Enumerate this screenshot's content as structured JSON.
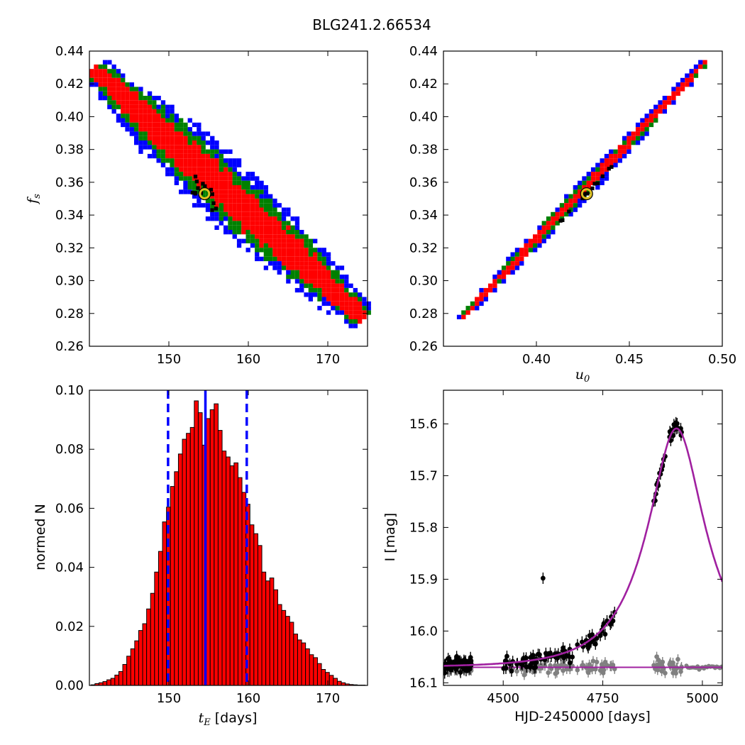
{
  "figure": {
    "title": "BLG241.2.66534"
  },
  "chart_data": [
    {
      "type": "heatmap",
      "id": "fs_vs_tE",
      "xlabel": "",
      "ylabel": "f_s",
      "xlim": [
        140,
        175
      ],
      "ylim": [
        0.26,
        0.44
      ],
      "xticks": [
        "150",
        "160",
        "170"
      ],
      "yticks": [
        "0.26",
        "0.28",
        "0.30",
        "0.32",
        "0.34",
        "0.36",
        "0.38",
        "0.40",
        "0.42",
        "0.44"
      ],
      "levels": [
        "blue",
        "green",
        "red",
        "black"
      ],
      "colors": {
        "blue": "#0000ff",
        "green": "#008000",
        "red": "#ff0000",
        "black": "#000000"
      },
      "correlation": {
        "x_start": 141,
        "y_start": 0.427,
        "x_end": 174,
        "y_end": 0.279
      },
      "best_fit": {
        "x": 154.5,
        "y": 0.353
      }
    },
    {
      "type": "heatmap",
      "id": "fs_vs_u0",
      "xlabel": "u_0",
      "ylabel": "",
      "xlim": [
        0.35,
        0.5
      ],
      "ylim": [
        0.26,
        0.44
      ],
      "xticks": [
        "0.40",
        "0.45",
        "0.50"
      ],
      "yticks": [
        "0.26",
        "0.28",
        "0.30",
        "0.32",
        "0.34",
        "0.36",
        "0.38",
        "0.40",
        "0.42",
        "0.44"
      ],
      "levels": [
        "blue",
        "green",
        "red",
        "black"
      ],
      "colors": {
        "blue": "#0000ff",
        "green": "#008000",
        "red": "#ff0000",
        "black": "#000000"
      },
      "correlation": {
        "x_start": 0.361,
        "y_start": 0.279,
        "x_end": 0.49,
        "y_end": 0.432
      },
      "best_fit": {
        "x": 0.427,
        "y": 0.353
      }
    },
    {
      "type": "bar",
      "id": "tE_histogram",
      "xlabel": "t_E [days]",
      "ylabel": "normed N",
      "xlim": [
        140,
        175
      ],
      "ylim": [
        0,
        0.1
      ],
      "xticks": [
        "150",
        "160",
        "170"
      ],
      "yticks": [
        "0.00",
        "0.02",
        "0.04",
        "0.06",
        "0.08",
        "0.10"
      ],
      "bar_color": "#ff0000",
      "bin_start": 140.2,
      "bin_width": 0.5,
      "values": [
        0.0002,
        0.0006,
        0.0009,
        0.0013,
        0.0019,
        0.0024,
        0.0035,
        0.0047,
        0.0071,
        0.0099,
        0.0124,
        0.0151,
        0.0186,
        0.0209,
        0.0259,
        0.0312,
        0.0384,
        0.0454,
        0.0554,
        0.0604,
        0.0674,
        0.0724,
        0.0784,
        0.0834,
        0.0854,
        0.0874,
        0.0964,
        0.0924,
        0.0814,
        0.0904,
        0.0934,
        0.0954,
        0.0864,
        0.0794,
        0.0774,
        0.0744,
        0.0754,
        0.0704,
        0.0654,
        0.0614,
        0.0544,
        0.0514,
        0.0474,
        0.0384,
        0.0354,
        0.0364,
        0.0324,
        0.0274,
        0.0254,
        0.0234,
        0.0214,
        0.0174,
        0.0154,
        0.0144,
        0.0124,
        0.0104,
        0.0094,
        0.0074,
        0.0054,
        0.0044,
        0.0034,
        0.0024,
        0.0014,
        0.0009,
        0.0005,
        0.0003,
        0.0002,
        0.0001,
        0.0001
      ],
      "median": 154.6,
      "interval": [
        149.9,
        159.8
      ],
      "line_color": "#0000ff"
    },
    {
      "type": "scatter",
      "id": "light_curve",
      "xlabel": "HJD-2450000 [days]",
      "ylabel": "I [mag]",
      "xlim": [
        4350,
        5050
      ],
      "ylim": [
        16.105,
        15.535
      ],
      "xticks": [
        "4500",
        "4750",
        "5000"
      ],
      "yticks": [
        "15.6",
        "15.7",
        "15.8",
        "15.9",
        "16.0",
        "16.1"
      ],
      "model": {
        "t0": 4935,
        "tE": 154.6,
        "u0": 0.427,
        "fs": 0.353,
        "I_base": 16.07,
        "color": "#a020a0"
      },
      "data_color": "#000000",
      "baseline_color": "#808080"
    }
  ]
}
